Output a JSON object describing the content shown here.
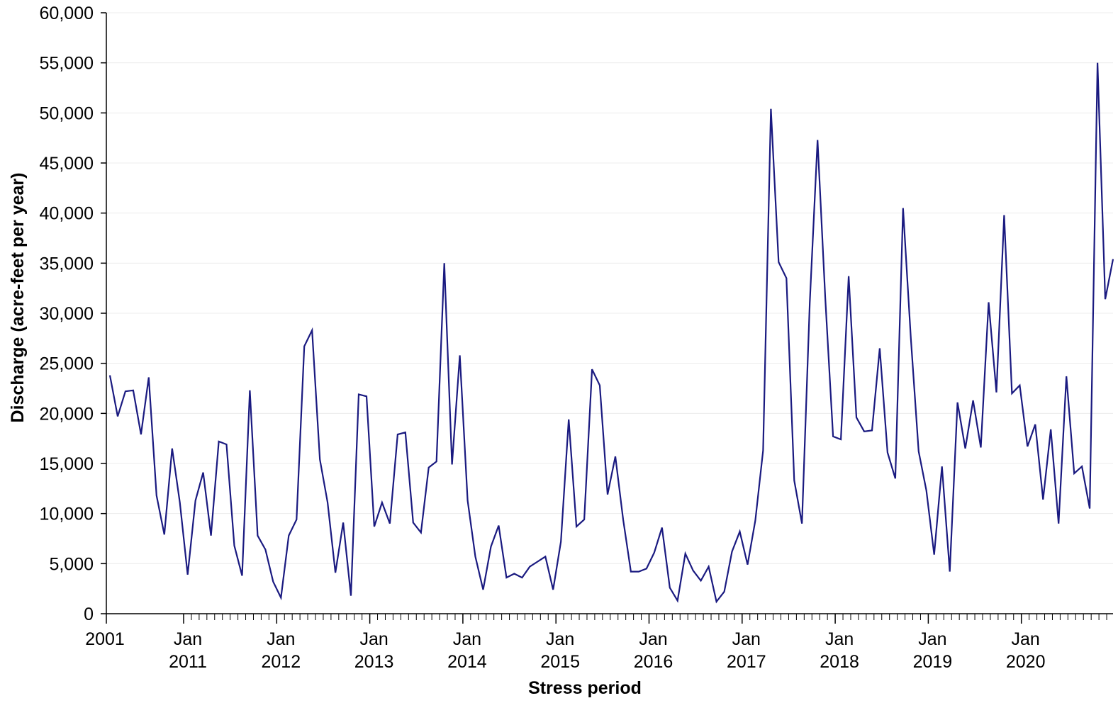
{
  "chart_data": {
    "type": "line",
    "title": "",
    "xlabel": "Stress period",
    "ylabel": "Discharge (acre-feet per year)",
    "ylim": [
      0,
      60000
    ],
    "y_ticks": [
      0,
      5000,
      10000,
      15000,
      20000,
      25000,
      30000,
      35000,
      40000,
      45000,
      50000,
      55000,
      60000
    ],
    "y_tick_labels": [
      "0",
      "5,000",
      "10,000",
      "15,000",
      "20,000",
      "25,000",
      "30,000",
      "35,000",
      "40,000",
      "45,000",
      "50,000",
      "55,000",
      "60,000"
    ],
    "grid": "horizontal",
    "x_tick_labels": [
      {
        "top": "2001",
        "bottom": ""
      },
      {
        "top": "Jan",
        "bottom": "2011"
      },
      {
        "top": "Jan",
        "bottom": "2012"
      },
      {
        "top": "Jan",
        "bottom": "2013"
      },
      {
        "top": "Jan",
        "bottom": "2014"
      },
      {
        "top": "Jan",
        "bottom": "2015"
      },
      {
        "top": "Jan",
        "bottom": "2016"
      },
      {
        "top": "Jan",
        "bottom": "2017"
      },
      {
        "top": "Jan",
        "bottom": "2018"
      },
      {
        "top": "Jan",
        "bottom": "2019"
      },
      {
        "top": "Jan",
        "bottom": "2020"
      }
    ],
    "color": "#1a1a80",
    "series": [
      {
        "name": "",
        "values": [
          23800,
          19700,
          22200,
          22300,
          17900,
          23600,
          11800,
          7900,
          16500,
          11100,
          3900,
          11300,
          14100,
          7800,
          17200,
          16900,
          6800,
          3800,
          22300,
          7800,
          6400,
          3200,
          1600,
          7800,
          9400,
          26700,
          28300,
          15400,
          11100,
          4100,
          9100,
          1800,
          21900,
          21700,
          8700,
          11100,
          9000,
          17900,
          18100,
          9100,
          8100,
          14600,
          15200,
          35000,
          14900,
          25800,
          11300,
          5700,
          2400,
          6700,
          8800,
          3600,
          4000,
          3600,
          4700,
          5200,
          5700,
          2400,
          7200,
          19400,
          8700,
          9400,
          24400,
          22800,
          11900,
          15700,
          9400,
          4200,
          4200,
          4500,
          6100,
          8600,
          2600,
          1300,
          6000,
          4300,
          3300,
          4700,
          1200,
          2200,
          6200,
          8200,
          4900,
          9300,
          16300,
          50400,
          35100,
          33500,
          13300,
          9000,
          31000,
          47300,
          31500,
          17700,
          17400,
          33700,
          19600,
          18200,
          18300,
          26500,
          16100,
          13500,
          40500,
          27500,
          16200,
          12300,
          5900,
          14700,
          4200,
          21100,
          16500,
          21300,
          16600,
          31100,
          22100,
          39800,
          22000,
          22800,
          16700,
          18900,
          11400,
          18400,
          9000,
          23700,
          14000,
          14700,
          10500,
          55000,
          31400,
          35400
        ]
      }
    ]
  }
}
